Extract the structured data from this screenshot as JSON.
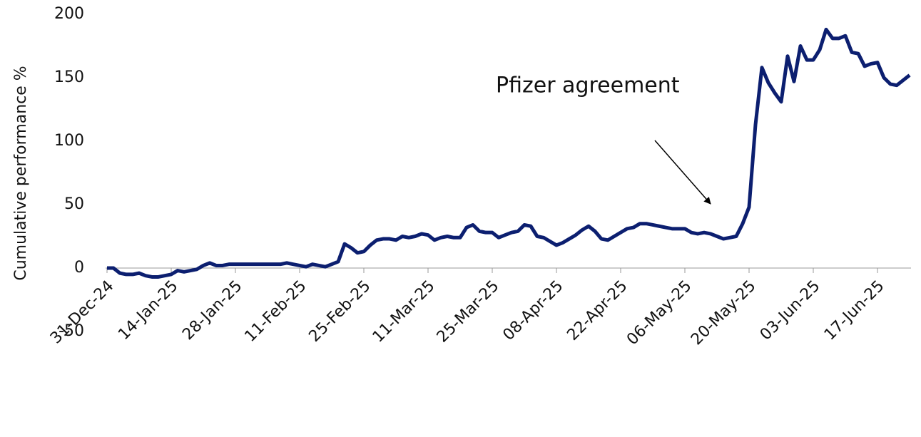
{
  "chart_data": {
    "type": "line",
    "y_label": "Cumulative performance %",
    "annotation": "Pfizer agreement",
    "categories": [
      "31-Dec-24",
      null,
      null,
      null,
      null,
      null,
      null,
      null,
      null,
      null,
      "14-Jan-25",
      null,
      null,
      null,
      null,
      null,
      null,
      null,
      null,
      null,
      "28-Jan-25",
      null,
      null,
      null,
      null,
      null,
      null,
      null,
      null,
      null,
      "11-Feb-25",
      null,
      null,
      null,
      null,
      null,
      null,
      null,
      null,
      null,
      "25-Feb-25",
      null,
      null,
      null,
      null,
      null,
      null,
      null,
      null,
      null,
      "11-Mar-25",
      null,
      null,
      null,
      null,
      null,
      null,
      null,
      null,
      null,
      "25-Mar-25",
      null,
      null,
      null,
      null,
      null,
      null,
      null,
      null,
      null,
      "08-Apr-25",
      null,
      null,
      null,
      null,
      null,
      null,
      null,
      null,
      null,
      "22-Apr-25",
      null,
      null,
      null,
      null,
      null,
      null,
      null,
      null,
      null,
      "06-May-25",
      null,
      null,
      null,
      null,
      null,
      null,
      null,
      null,
      null,
      "20-May-25",
      null,
      null,
      null,
      null,
      null,
      null,
      null,
      null,
      null,
      "03-Jun-25",
      null,
      null,
      null,
      null,
      null,
      null,
      null,
      null,
      null,
      "17-Jun-25",
      null,
      null,
      null,
      null,
      null
    ],
    "values": [
      0,
      0,
      -4,
      -5,
      -5,
      -4,
      -6,
      -7,
      -7,
      -6,
      -5,
      -2,
      -3,
      -2,
      -1,
      2,
      4,
      2,
      2,
      3,
      3,
      3,
      3,
      3,
      3,
      3,
      3,
      3,
      4,
      3,
      2,
      1,
      3,
      2,
      1,
      3,
      5,
      19,
      16,
      12,
      13,
      18,
      22,
      23,
      23,
      22,
      25,
      24,
      25,
      27,
      26,
      22,
      24,
      25,
      24,
      24,
      32,
      34,
      29,
      28,
      28,
      24,
      26,
      28,
      29,
      34,
      33,
      25,
      24,
      21,
      18,
      20,
      23,
      26,
      30,
      33,
      29,
      23,
      22,
      25,
      28,
      31,
      32,
      35,
      35,
      34,
      33,
      32,
      31,
      31,
      31,
      28,
      27,
      28,
      27,
      25,
      23,
      24,
      25,
      35,
      48,
      113,
      158,
      146,
      138,
      131,
      167,
      147,
      175,
      164,
      164,
      172,
      188,
      181,
      181,
      183,
      170,
      169,
      159,
      161,
      162,
      150,
      145,
      144,
      148,
      152
    ],
    "color": "#0c1f70",
    "ylim": [
      -50,
      200
    ],
    "yticks": [
      -50,
      0,
      50,
      100,
      150,
      200
    ],
    "grid": false
  }
}
